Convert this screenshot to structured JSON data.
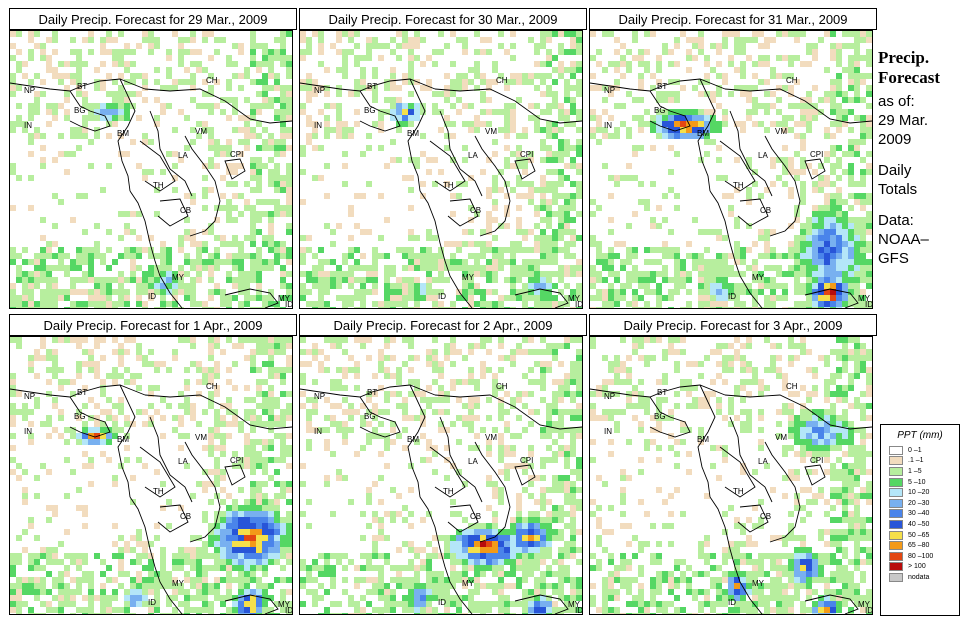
{
  "panels": [
    {
      "title": "Daily Precip. Forecast for  29 Mar., 2009",
      "day": 0
    },
    {
      "title": "Daily Precip. Forecast for  30 Mar., 2009",
      "day": 1
    },
    {
      "title": "Daily Precip. Forecast for  31 Mar., 2009",
      "day": 2
    },
    {
      "title": "Daily Precip. Forecast for  1 Apr., 2009",
      "day": 3
    },
    {
      "title": "Daily Precip. Forecast for  2 Apr., 2009",
      "day": 4
    },
    {
      "title": "Daily Precip. Forecast for  3 Apr., 2009",
      "day": 5
    }
  ],
  "country_labels": [
    "NP",
    "BT",
    "BG",
    "IN",
    "BM",
    "CH",
    "VM",
    "LA",
    "CPI",
    "TH",
    "CB",
    "MY",
    "MY",
    "ID",
    "ID"
  ],
  "sidebar": {
    "heading1": "Precip.",
    "heading2": "Forecast",
    "asof1": "as of:",
    "asof2": "29 Mar.",
    "asof3": "2009",
    "daily1": "Daily",
    "daily2": "Totals",
    "data1": "Data:",
    "data2": "NOAA–",
    "data3": "GFS"
  },
  "legend": {
    "title": "PPT (mm)",
    "items": [
      {
        "label": "0 –1",
        "color": "#ffffff"
      },
      {
        "label": ".1 –1",
        "color": "#f2dcbe"
      },
      {
        "label": "1 –5",
        "color": "#b7ee9e"
      },
      {
        "label": "5 –10",
        "color": "#55d764"
      },
      {
        "label": "10 –20",
        "color": "#b4e6f8"
      },
      {
        "label": "20 –30",
        "color": "#78b0f0"
      },
      {
        "label": "30 –40",
        "color": "#4a84ea"
      },
      {
        "label": "40 –50",
        "color": "#2855d8"
      },
      {
        "label": "50 –65",
        "color": "#f5e04a"
      },
      {
        "label": "65 –80",
        "color": "#f39a18"
      },
      {
        "label": "80 –100",
        "color": "#e34712"
      },
      {
        "label": "> 100",
        "color": "#b80c0c"
      },
      {
        "label": "nodata",
        "color": "#c8c8c8"
      }
    ]
  }
}
